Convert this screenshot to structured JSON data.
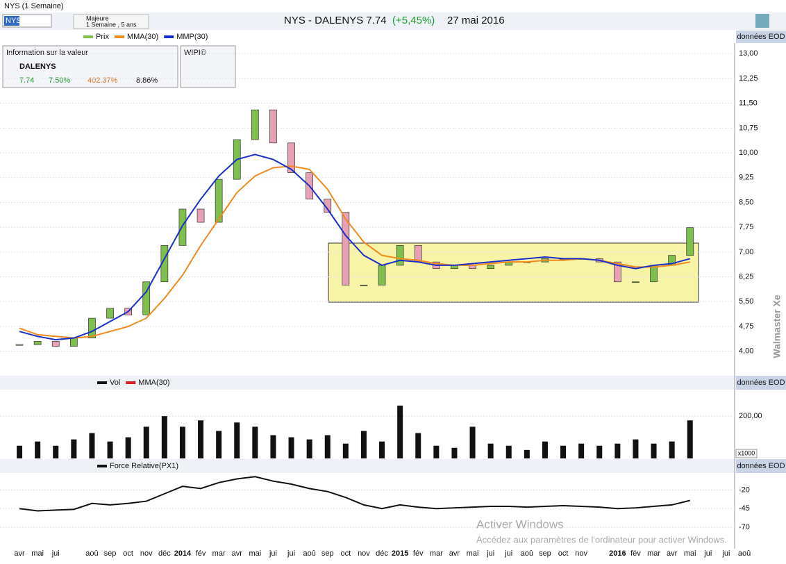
{
  "window": {
    "title": "NYS (1 Semaine)",
    "symbol_input": "NYS",
    "period_title": "Majeure",
    "period_sub": "1 Semaine , 5 ans"
  },
  "header": {
    "name": "NYS - DALENYS  7.74",
    "change": "(+5,45%)",
    "date": "27 mai 2016"
  },
  "panel_labels": {
    "source": "données EOD",
    "watermark": "Walmaster Xe",
    "unit": "x1000"
  },
  "info_panel": {
    "title": "Information sur la valeur",
    "name": "DALENYS",
    "price": "7.74",
    "change": "7.50%",
    "perf": "402.37%",
    "yield": "8.86%",
    "wipi": "WIPI©"
  },
  "activation": {
    "title": "Activer Windows",
    "text": "Accédez aux paramètres de l'ordinateur pour activer Windows."
  },
  "x_axis": {
    "categories": [
      "avr",
      "mai",
      "jui",
      null,
      "aoû",
      "sep",
      "oct",
      "nov",
      "déc",
      "2014",
      "fév",
      "mar",
      "avr",
      "mai",
      "jui",
      "jui",
      "aoû",
      "sep",
      "oct",
      "nov",
      "déc",
      "2015",
      "fév",
      "mar",
      "avr",
      "mai",
      "jui",
      "jui",
      "aoû",
      "sep",
      "oct",
      "nov",
      null,
      "2016",
      "fév",
      "mar",
      "avr",
      "mai",
      "jui",
      "jui",
      "aoû"
    ]
  },
  "chart_data": [
    {
      "type": "candlestick",
      "legend": "Prix",
      "series": [
        {
          "name": "Prix",
          "color": "#7fbf4d",
          "down_color": "#e8a0b4",
          "values": [
            4.2,
            4.3,
            4.15,
            4.4,
            5.0,
            5.3,
            5.1,
            6.1,
            7.2,
            8.3,
            7.9,
            9.2,
            10.4,
            11.3,
            10.3,
            9.4,
            8.6,
            8.2,
            6.0,
            6.0,
            6.6,
            7.2,
            6.7,
            6.5,
            6.6,
            6.5,
            6.6,
            6.7,
            6.7,
            6.8,
            6.8,
            6.8,
            6.7,
            6.1,
            6.1,
            6.6,
            6.9,
            7.74
          ]
        },
        {
          "name": "MMA(30)",
          "color": "#f08a1c",
          "values": [
            4.7,
            4.5,
            4.45,
            4.4,
            4.45,
            4.6,
            4.75,
            5.0,
            5.6,
            6.3,
            7.2,
            8.0,
            8.8,
            9.3,
            9.55,
            9.6,
            9.5,
            8.9,
            8.0,
            7.3,
            6.9,
            6.8,
            6.75,
            6.65,
            6.6,
            6.6,
            6.65,
            6.7,
            6.7,
            6.75,
            6.75,
            6.8,
            6.75,
            6.65,
            6.55,
            6.55,
            6.6,
            6.7
          ]
        },
        {
          "name": "MMP(30)",
          "color": "#1a2fc8",
          "values": [
            4.6,
            4.45,
            4.35,
            4.4,
            4.6,
            4.9,
            5.2,
            5.8,
            6.8,
            7.8,
            8.6,
            9.3,
            9.8,
            9.95,
            9.8,
            9.5,
            9.0,
            8.3,
            7.5,
            6.9,
            6.6,
            6.75,
            6.7,
            6.6,
            6.6,
            6.65,
            6.7,
            6.75,
            6.8,
            6.85,
            6.8,
            6.8,
            6.75,
            6.6,
            6.5,
            6.6,
            6.65,
            6.8
          ]
        }
      ],
      "ylim": [
        3.28,
        13.32
      ],
      "yticks": [
        {
          "value": 4,
          "label": "4,00"
        },
        {
          "value": 4.75,
          "label": "4,75"
        },
        {
          "value": 5.5,
          "label": "5,50"
        },
        {
          "value": 6.25,
          "label": "6,25"
        },
        {
          "value": 7,
          "label": "7,00"
        },
        {
          "value": 7.75,
          "label": "7,75"
        },
        {
          "value": 8.5,
          "label": "8,50"
        },
        {
          "value": 9.25,
          "label": "9,25"
        },
        {
          "value": 10,
          "label": "10,00"
        },
        {
          "value": 10.75,
          "label": "10,75"
        },
        {
          "value": 11.5,
          "label": "11,50"
        },
        {
          "value": 12.25,
          "label": "12,25"
        },
        {
          "value": 13,
          "label": "13,00"
        }
      ],
      "grid": true
    },
    {
      "type": "bar",
      "series": [
        {
          "name": "Vol",
          "color": "#111111",
          "values": [
            60,
            80,
            60,
            90,
            120,
            80,
            100,
            150,
            200,
            150,
            180,
            130,
            170,
            150,
            110,
            100,
            90,
            110,
            70,
            130,
            80,
            250,
            120,
            60,
            50,
            150,
            70,
            60,
            40,
            80,
            60,
            70,
            60,
            70,
            90,
            70,
            80,
            180
          ]
        },
        {
          "name": "MMA(30)",
          "color": "#d02020",
          "values": []
        }
      ],
      "ylim": [
        0,
        322
      ],
      "yticks": [
        {
          "value": 200,
          "label": "200,00"
        }
      ],
      "grid": true
    },
    {
      "type": "line",
      "series": [
        {
          "name": "Force Relative(PX1)",
          "color": "#111111",
          "values": [
            -45,
            -48,
            -47,
            -46,
            -38,
            -40,
            -38,
            -35,
            -25,
            -15,
            -18,
            -10,
            -5,
            -2,
            -8,
            -12,
            -18,
            -22,
            -30,
            -40,
            -45,
            -40,
            -43,
            -45,
            -44,
            -43,
            -42,
            -42,
            -43,
            -42,
            -41,
            -42,
            -43,
            -45,
            -44,
            -42,
            -40,
            -34
          ]
        }
      ],
      "ylim": [
        -99,
        2
      ],
      "yticks": [
        -20,
        -45,
        -70
      ],
      "grid": true
    }
  ]
}
